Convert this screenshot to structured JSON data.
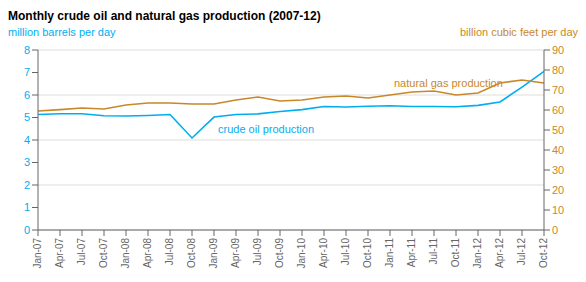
{
  "chart_data": {
    "type": "line",
    "title": "Monthly crude oil and natural gas production (2007-12)",
    "ylabel": "million barrels per day",
    "y2label": "billion cubic feet per day",
    "categories": [
      "Jan-07",
      "Apr-07",
      "Jul-07",
      "Oct-07",
      "Jan-08",
      "Apr-08",
      "Jul-08",
      "Oct-08",
      "Jan-09",
      "Apr-09",
      "Jul-09",
      "Oct-09",
      "Jan-10",
      "Apr-10",
      "Jul-10",
      "Oct-10",
      "Jan-11",
      "Apr-11",
      "Jul-11",
      "Oct-11",
      "Jan-12",
      "Apr-12",
      "Jul-12",
      "Oct-12"
    ],
    "series": [
      {
        "name": "crude oil production",
        "color": "#00AEEF",
        "axis": "y",
        "values": [
          5.13,
          5.17,
          5.17,
          5.08,
          5.07,
          5.09,
          5.13,
          4.09,
          5.02,
          5.13,
          5.16,
          5.27,
          5.35,
          5.49,
          5.47,
          5.5,
          5.52,
          5.49,
          5.49,
          5.48,
          5.54,
          5.69,
          6.35,
          7.05
        ]
      },
      {
        "name": "natural gas production",
        "color": "#C8882A",
        "axis": "y2",
        "values": [
          59.5,
          60.2,
          61.0,
          60.5,
          62.5,
          63.5,
          63.5,
          63.0,
          63.0,
          65.0,
          66.5,
          64.5,
          65.0,
          66.5,
          67.0,
          66.0,
          67.5,
          69.0,
          69.5,
          67.5,
          68.5,
          73.5,
          75.0,
          73.5
        ]
      }
    ],
    "ylim": [
      0,
      8
    ],
    "yticks": [
      0,
      1,
      2,
      3,
      4,
      5,
      6,
      7,
      8
    ],
    "y2lim": [
      0,
      90
    ],
    "y2ticks": [
      0,
      10,
      20,
      30,
      40,
      50,
      60,
      70,
      80,
      90
    ],
    "grid": true
  }
}
